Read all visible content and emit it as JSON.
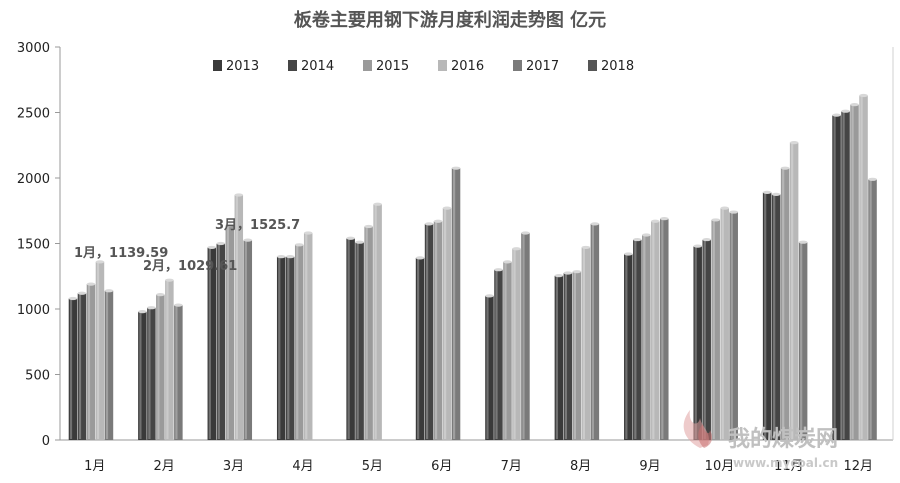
{
  "chart_data": {
    "type": "bar",
    "title": "板卷主要用钢下游月度利润走势图  亿元",
    "categories": [
      "1月",
      "2月",
      "3月",
      "4月",
      "5月",
      "6月",
      "7月",
      "8月",
      "9月",
      "10月",
      "11月",
      "12月"
    ],
    "series": [
      {
        "name": "2013",
        "color": "#3a3a3a",
        "values": [
          1080,
          980,
          1470,
          1400,
          1540,
          1390,
          1100,
          1255,
          1420,
          1480,
          1890,
          2480
        ]
      },
      {
        "name": "2014",
        "color": "#454545",
        "values": [
          1120,
          1010,
          1500,
          1400,
          1510,
          1650,
          1300,
          1275,
          1530,
          1530,
          1875,
          2510
        ]
      },
      {
        "name": "2015",
        "color": "#9a9a9a",
        "values": [
          1190,
          1110,
          1640,
          1490,
          1630,
          1670,
          1360,
          1285,
          1565,
          1680,
          2075,
          2560
        ]
      },
      {
        "name": "2016",
        "color": "#b8b8b8",
        "values": [
          1360,
          1220,
          1870,
          1580,
          1800,
          1770,
          1460,
          1470,
          1670,
          1770,
          2270,
          2630
        ]
      },
      {
        "name": "2017",
        "color": "#7a7a7a",
        "values": [
          1139.59,
          1029.61,
          1525.7,
          null,
          null,
          2075,
          1580,
          1650,
          1690,
          1740,
          1510,
          1990
        ]
      },
      {
        "name": "2018",
        "color": "#555555",
        "values": [
          null,
          null,
          null,
          null,
          null,
          null,
          null,
          null,
          null,
          null,
          null,
          null
        ]
      }
    ],
    "ylim": [
      0,
      3000
    ],
    "yticks": [
      0,
      500,
      1000,
      1500,
      2000,
      2500,
      3000
    ],
    "annotations": [
      "1月，1139.59",
      "2月，1029.61",
      "3月，1525.7"
    ],
    "legend_position": "top",
    "grid": false
  },
  "watermark": {
    "text": "我的煤炭网",
    "url": "www.mycoal.cn"
  }
}
